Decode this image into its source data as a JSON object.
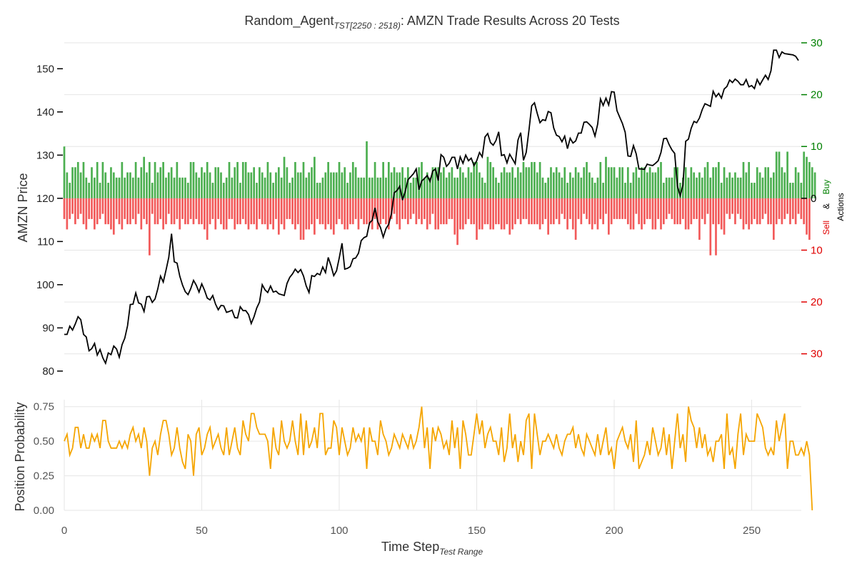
{
  "chart_data": [
    {
      "type": "line+bar",
      "title": {
        "prefix": "Random_Agent",
        "subscript": "TST[2250 : 2518)",
        "suffix": ": AMZN Trade Results Across 20 Tests"
      },
      "ylabel": "AMZN Price",
      "ylim": [
        78,
        156
      ],
      "yticks": [
        "80",
        "90",
        "100",
        "110",
        "120",
        "130",
        "140",
        "150"
      ],
      "secondary_axis": {
        "label_sell": "Sell",
        "label_amp": "&",
        "label_buy": "Buy",
        "label_actions": "Actions",
        "ylim": [
          -35,
          30
        ],
        "yticks": [
          "30",
          "20",
          "10",
          "0",
          "10",
          "20",
          "30"
        ],
        "buy_color": "#008000",
        "sell_color": "#e00000"
      },
      "price": [
        88.5,
        88.5,
        90.4,
        89.5,
        90.9,
        92.6,
        91.9,
        88.5,
        87.9,
        84.7,
        85.2,
        86.4,
        83.7,
        85.0,
        83.1,
        81.8,
        84.2,
        83.8,
        85.8,
        85.1,
        83.2,
        86.1,
        87.6,
        90.5,
        95.4,
        95.5,
        98.1,
        95.8,
        95.5,
        93.8,
        97.2,
        97.3,
        95.9,
        96.7,
        99.0,
        102.0,
        100.6,
        103.4,
        106.3,
        111.8,
        105.3,
        105.0,
        102.0,
        99.9,
        98.4,
        97.7,
        99.1,
        101.0,
        99.9,
        98.3,
        100.2,
        98.7,
        96.9,
        96.5,
        97.5,
        95.5,
        94.2,
        95.2,
        95.1,
        93.6,
        93.8,
        94.1,
        92.4,
        92.3,
        94.9,
        94.0,
        94.0,
        93.1,
        91.0,
        92.6,
        94.6,
        96.0,
        100.0,
        98.8,
        98.2,
        99.7,
        98.3,
        98.5,
        97.9,
        97.7,
        97.5,
        100.3,
        101.7,
        102.5,
        103.6,
        102.8,
        103.5,
        102.0,
        99.7,
        98.2,
        102.1,
        101.9,
        102.6,
        102.3,
        104.1,
        102.8,
        106.3,
        104.4,
        102.1,
        103.2,
        106.2,
        109.6,
        103.6,
        103.8,
        104.2,
        106.0,
        106.2,
        107.3,
        110.2,
        110.9,
        111.2,
        114.3,
        114.9,
        117.8,
        114.6,
        113.2,
        111.0,
        113.0,
        114.0,
        116.5,
        121.3,
        121.8,
        122.8,
        119.6,
        121.6,
        124.3,
        125.0,
        125.7,
        126.8,
        122.0,
        124.0,
        124.6,
        125.3,
        123.9,
        126.3,
        126.8,
        124.1,
        130.1,
        129.5,
        127.4,
        128.1,
        129.5,
        129.5,
        126.8,
        129.6,
        128.1,
        130.0,
        128.7,
        129.3,
        127.6,
        128.7,
        130.6,
        129.6,
        134.2,
        135.0,
        132.9,
        132.3,
        133.4,
        135.4,
        129.9,
        130.1,
        128.2,
        130.2,
        129.1,
        128.0,
        133.5,
        135.2,
        128.8,
        130.6,
        135.8,
        141.4,
        142.1,
        139.7,
        137.5,
        138.2,
        138.0,
        140.1,
        139.8,
        136.3,
        134.6,
        134.3,
        133.1,
        134.4,
        131.5,
        133.9,
        132.8,
        133.3,
        135.1,
        135.1,
        137.6,
        137.7,
        137.1,
        136.4,
        134.4,
        137.2,
        143.0,
        141.5,
        143.2,
        141.6,
        144.7,
        144.6,
        140.3,
        138.8,
        137.3,
        135.3,
        129.8,
        129.7,
        132.2,
        130.3,
        126.8,
        126.8,
        126.7,
        127.9,
        127.7,
        127.6,
        128.1,
        128.7,
        130.6,
        133.8,
        133.9,
        132.4,
        131.2,
        130.4,
        122.8,
        120.6,
        123.1,
        133.2,
        133.7,
        136.2,
        137.8,
        137.5,
        138.6,
        140.5,
        141.9,
        141.6,
        141.3,
        144.8,
        143.5,
        144.3,
        143.2,
        145.3,
        145.9,
        147.4,
        146.8,
        147.6,
        147.1,
        146.3,
        146.3,
        147.5,
        145.8,
        146.1,
        145.4,
        147.5,
        146.3,
        147.4,
        148.5,
        147.5,
        149.5,
        154.3,
        154.3,
        152.6,
        153.9,
        153.5,
        153.4,
        153.3,
        153.2,
        152.9,
        151.9
      ],
      "buy": [
        10,
        5,
        3,
        6,
        6,
        7,
        5,
        7,
        4,
        3,
        6,
        4,
        7,
        3,
        7,
        5,
        3,
        6,
        5,
        4,
        4,
        7,
        4,
        5,
        5,
        4,
        7,
        4,
        6,
        8,
        5,
        7,
        3,
        7,
        5,
        6,
        7,
        4,
        5,
        6,
        4,
        7,
        4,
        4,
        4,
        3,
        7,
        7,
        5,
        4,
        6,
        5,
        7,
        5,
        3,
        6,
        6,
        5,
        3,
        4,
        7,
        4,
        6,
        7,
        3,
        7,
        7,
        5,
        5,
        6,
        3,
        6,
        5,
        4,
        7,
        5,
        3,
        5,
        6,
        4,
        8,
        6,
        3,
        4,
        7,
        5,
        5,
        7,
        4,
        5,
        6,
        8,
        3,
        3,
        4,
        5,
        7,
        5,
        5,
        5,
        7,
        5,
        6,
        3,
        5,
        7,
        6,
        4,
        4,
        4,
        11,
        4,
        4,
        7,
        4,
        4,
        7,
        4,
        7,
        5,
        6,
        5,
        5,
        6,
        4,
        6,
        3,
        4,
        4,
        6,
        7,
        4,
        5,
        4,
        6,
        6,
        6,
        5,
        6,
        4,
        5,
        6,
        4,
        4,
        6,
        5,
        4,
        6,
        5,
        7,
        7,
        5,
        4,
        3,
        8,
        7,
        6,
        4,
        3,
        5,
        6,
        5,
        5,
        6,
        4,
        6,
        5,
        7,
        6,
        6,
        7,
        7,
        5,
        7,
        4,
        3,
        4,
        6,
        5,
        6,
        5,
        4,
        6,
        3,
        5,
        4,
        6,
        5,
        4,
        6,
        7,
        5,
        4,
        3,
        4,
        7,
        3,
        8,
        6,
        6,
        6,
        4,
        6,
        6,
        3,
        6,
        3,
        5,
        6,
        4,
        6,
        6,
        5,
        6,
        5,
        5,
        6,
        7,
        3,
        4,
        4,
        4,
        6,
        6,
        3,
        4,
        6,
        4,
        6,
        5,
        4,
        5,
        4,
        6,
        7,
        4,
        6,
        6,
        7,
        3,
        6,
        4,
        5,
        4,
        5,
        4,
        4,
        7,
        5,
        7,
        3,
        3,
        6,
        5,
        4,
        6,
        6,
        4,
        5,
        9,
        9,
        6,
        5,
        9,
        3,
        3,
        6,
        5,
        3,
        9,
        8,
        7,
        6,
        5
      ],
      "sell": [
        4,
        6,
        4,
        3,
        5,
        4,
        3,
        5,
        6,
        4,
        4,
        6,
        5,
        4,
        3,
        5,
        5,
        6,
        7,
        4,
        5,
        6,
        4,
        5,
        5,
        4,
        5,
        3,
        6,
        4,
        5,
        11,
        3,
        5,
        5,
        4,
        6,
        5,
        3,
        5,
        5,
        4,
        6,
        4,
        5,
        5,
        4,
        5,
        4,
        5,
        5,
        6,
        8,
        5,
        4,
        6,
        4,
        5,
        6,
        6,
        4,
        4,
        6,
        5,
        5,
        4,
        5,
        6,
        5,
        5,
        6,
        4,
        5,
        5,
        6,
        5,
        6,
        4,
        7,
        5,
        6,
        4,
        4,
        5,
        6,
        5,
        8,
        8,
        6,
        6,
        5,
        7,
        4,
        5,
        5,
        6,
        5,
        6,
        7,
        5,
        4,
        5,
        6,
        6,
        5,
        5,
        4,
        6,
        4,
        5,
        5,
        5,
        6,
        4,
        6,
        5,
        4,
        5,
        6,
        4,
        3,
        5,
        6,
        4,
        4,
        5,
        4,
        3,
        5,
        4,
        5,
        4,
        6,
        5,
        3,
        6,
        6,
        5,
        5,
        5,
        4,
        4,
        7,
        9,
        6,
        6,
        5,
        4,
        5,
        5,
        8,
        6,
        6,
        5,
        5,
        6,
        6,
        5,
        5,
        6,
        6,
        5,
        7,
        6,
        5,
        4,
        5,
        4,
        4,
        5,
        5,
        5,
        5,
        6,
        5,
        4,
        7,
        5,
        5,
        4,
        5,
        3,
        4,
        6,
        4,
        6,
        8,
        4,
        5,
        3,
        4,
        5,
        6,
        5,
        6,
        4,
        5,
        3,
        7,
        5,
        4,
        4,
        4,
        4,
        4,
        5,
        6,
        6,
        3,
        5,
        6,
        5,
        4,
        4,
        6,
        6,
        4,
        6,
        5,
        4,
        3,
        4,
        5,
        5,
        5,
        4,
        6,
        6,
        5,
        4,
        4,
        8,
        4,
        5,
        3,
        11,
        5,
        11,
        5,
        6,
        7,
        3,
        4,
        3,
        5,
        3,
        4,
        6,
        5,
        6,
        5,
        4,
        5,
        5,
        4,
        3,
        5,
        5,
        8,
        5,
        4,
        5,
        4,
        3,
        5,
        4,
        5,
        3,
        4,
        5,
        7,
        8
      ]
    },
    {
      "type": "line",
      "xlabel": "Time Step",
      "xlabel_subscript": "Test Range",
      "ylabel": "Position Probability",
      "ylim": [
        0,
        0.8
      ],
      "xlim": [
        0,
        267
      ],
      "yticks": [
        "0.00",
        "0.25",
        "0.50",
        "0.75"
      ],
      "xticks": [
        "0",
        "50",
        "100",
        "150",
        "200",
        "250"
      ],
      "color": "#f5a500",
      "values": [
        0.5,
        0.55,
        0.4,
        0.45,
        0.6,
        0.6,
        0.45,
        0.55,
        0.45,
        0.45,
        0.55,
        0.5,
        0.55,
        0.45,
        0.65,
        0.65,
        0.5,
        0.45,
        0.45,
        0.45,
        0.5,
        0.45,
        0.5,
        0.45,
        0.55,
        0.6,
        0.5,
        0.55,
        0.45,
        0.6,
        0.5,
        0.25,
        0.45,
        0.5,
        0.4,
        0.55,
        0.65,
        0.65,
        0.55,
        0.4,
        0.45,
        0.6,
        0.45,
        0.35,
        0.3,
        0.55,
        0.5,
        0.25,
        0.55,
        0.6,
        0.4,
        0.45,
        0.55,
        0.6,
        0.45,
        0.5,
        0.55,
        0.45,
        0.4,
        0.6,
        0.4,
        0.5,
        0.6,
        0.45,
        0.4,
        0.65,
        0.55,
        0.5,
        0.7,
        0.7,
        0.6,
        0.55,
        0.55,
        0.55,
        0.5,
        0.3,
        0.6,
        0.45,
        0.4,
        0.65,
        0.5,
        0.45,
        0.5,
        0.65,
        0.5,
        0.4,
        0.7,
        0.4,
        0.65,
        0.45,
        0.5,
        0.6,
        0.45,
        0.7,
        0.7,
        0.4,
        0.45,
        0.45,
        0.65,
        0.6,
        0.4,
        0.6,
        0.5,
        0.4,
        0.45,
        0.6,
        0.5,
        0.55,
        0.5,
        0.6,
        0.3,
        0.6,
        0.5,
        0.5,
        0.4,
        0.65,
        0.55,
        0.5,
        0.4,
        0.45,
        0.55,
        0.5,
        0.45,
        0.55,
        0.5,
        0.45,
        0.55,
        0.45,
        0.5,
        0.6,
        0.75,
        0.45,
        0.6,
        0.3,
        0.6,
        0.5,
        0.6,
        0.55,
        0.45,
        0.5,
        0.4,
        0.65,
        0.45,
        0.6,
        0.3,
        0.65,
        0.55,
        0.4,
        0.4,
        0.55,
        0.7,
        0.55,
        0.65,
        0.45,
        0.55,
        0.6,
        0.5,
        0.5,
        0.4,
        0.6,
        0.35,
        0.45,
        0.7,
        0.45,
        0.55,
        0.35,
        0.5,
        0.4,
        0.65,
        0.7,
        0.3,
        0.7,
        0.55,
        0.4,
        0.5,
        0.5,
        0.55,
        0.5,
        0.45,
        0.55,
        0.45,
        0.4,
        0.5,
        0.55,
        0.55,
        0.6,
        0.45,
        0.55,
        0.45,
        0.4,
        0.55,
        0.5,
        0.45,
        0.4,
        0.55,
        0.4,
        0.5,
        0.6,
        0.4,
        0.45,
        0.3,
        0.5,
        0.55,
        0.6,
        0.5,
        0.45,
        0.55,
        0.35,
        0.65,
        0.3,
        0.35,
        0.4,
        0.5,
        0.4,
        0.6,
        0.5,
        0.4,
        0.45,
        0.6,
        0.4,
        0.55,
        0.3,
        0.5,
        0.7,
        0.45,
        0.55,
        0.35,
        0.75,
        0.65,
        0.6,
        0.45,
        0.6,
        0.45,
        0.55,
        0.4,
        0.45,
        0.35,
        0.5,
        0.5,
        0.55,
        0.3,
        0.7,
        0.4,
        0.45,
        0.3,
        0.55,
        0.7,
        0.4,
        0.55,
        0.5,
        0.5,
        0.5,
        0.7,
        0.65,
        0.6,
        0.45,
        0.4,
        0.45,
        0.4,
        0.65,
        0.5,
        0.6,
        0.7,
        0.3,
        0.5,
        0.5,
        0.4,
        0.4,
        0.45,
        0.4,
        0.5,
        0.4,
        0.0
      ]
    }
  ]
}
